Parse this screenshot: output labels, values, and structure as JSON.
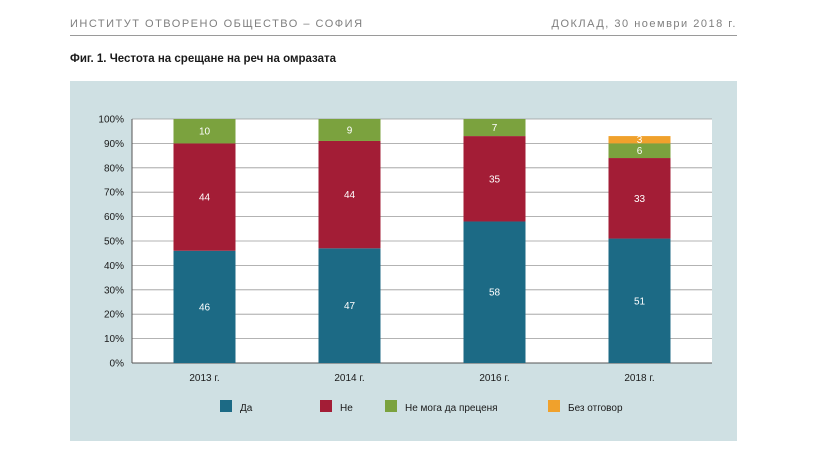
{
  "header": {
    "left": "ИНСТИТУТ ОТВОРЕНО ОБЩЕСТВО – СОФИЯ",
    "right": "ДОКЛАД, 30 ноември 2018 г."
  },
  "figure_title": "Фиг. 1. Честота на срещане на реч на омразата",
  "colors": {
    "panel": "#cfe0e3",
    "yes": "#1c6a85",
    "no": "#a31d36",
    "cannot": "#7ba23e",
    "no_answer": "#f0a12c",
    "label_text": "#ffffff",
    "axis_text": "#1a1a1a"
  },
  "chart_data": {
    "type": "bar",
    "stacked": true,
    "categories": [
      "2013 г.",
      "2014 г.",
      "2016 г.",
      "2018 г."
    ],
    "series": [
      {
        "name": "Да",
        "values": [
          46,
          47,
          58,
          51
        ]
      },
      {
        "name": "Не",
        "values": [
          44,
          44,
          35,
          33
        ]
      },
      {
        "name": "Не мога да преценя",
        "values": [
          10,
          9,
          7,
          6
        ]
      },
      {
        "name": "Без отговор",
        "values": [
          0,
          0,
          0,
          3
        ]
      }
    ],
    "ylim": [
      0,
      100
    ],
    "yticks": [
      "0%",
      "10%",
      "20%",
      "30%",
      "40%",
      "50%",
      "60%",
      "70%",
      "80%",
      "90%",
      "100%"
    ],
    "grid": true,
    "legend": "bottom"
  }
}
